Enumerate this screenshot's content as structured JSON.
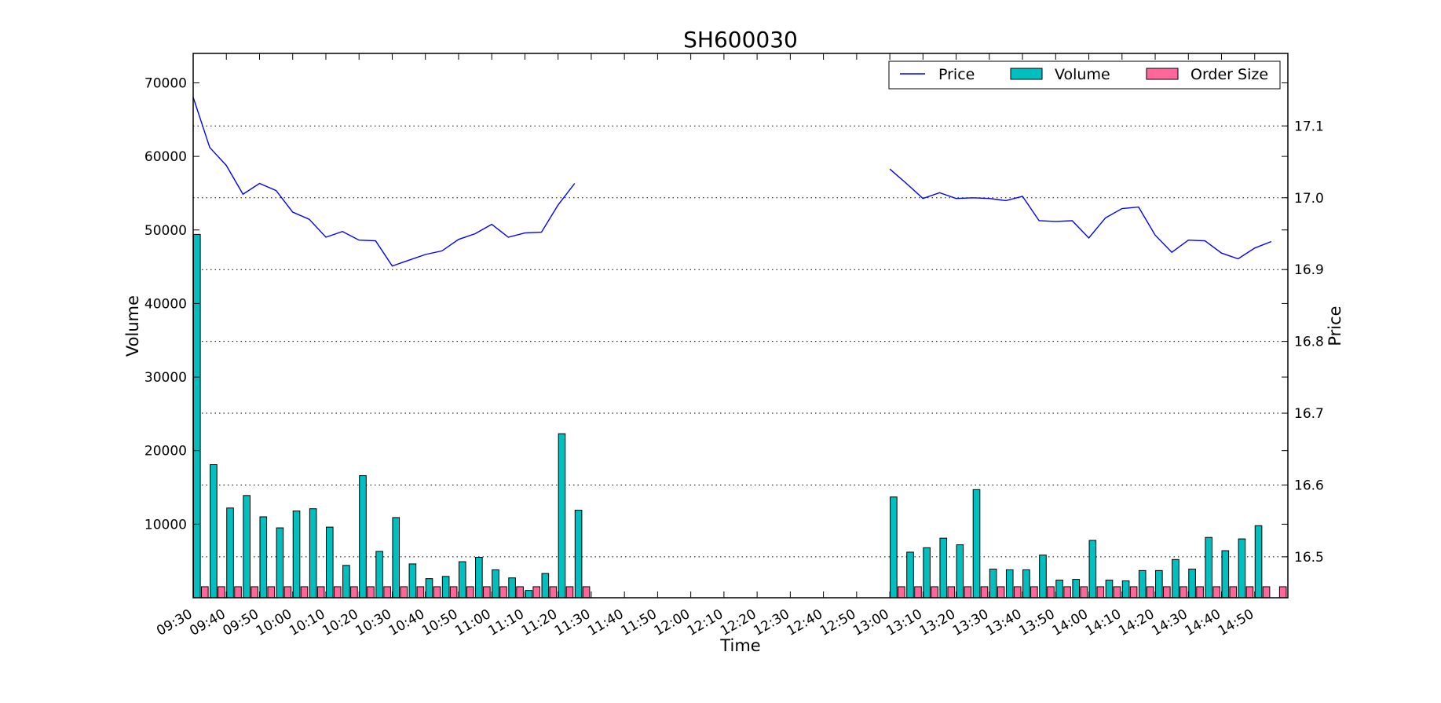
{
  "chart_data": {
    "type": "bar",
    "title": "SH600030",
    "xlabel": "Time",
    "ylabel": "Volume",
    "y2label": "Price",
    "ylim": [
      0,
      74000
    ],
    "y2lim": [
      16.443,
      17.201
    ],
    "grid": "dotted, right axis",
    "legend_position": "top-right",
    "legend": [
      "Price",
      "Volume",
      "Order Size"
    ],
    "x_tick_labels": [
      "09:30",
      "09:40",
      "09:50",
      "10:00",
      "10:10",
      "10:20",
      "10:30",
      "10:40",
      "10:50",
      "11:00",
      "11:10",
      "11:20",
      "11:30",
      "11:40",
      "11:50",
      "12:00",
      "12:10",
      "12:20",
      "12:30",
      "12:40",
      "12:50",
      "13:00",
      "13:10",
      "13:20",
      "13:30",
      "13:40",
      "13:50",
      "14:00",
      "14:10",
      "14:20",
      "14:30",
      "14:40",
      "14:50"
    ],
    "y_ticks": [
      10000,
      20000,
      30000,
      40000,
      50000,
      60000,
      70000
    ],
    "y_tick_labels": [
      "10000",
      "20000",
      "30000",
      "40000",
      "50000",
      "60000",
      "70000"
    ],
    "y2_ticks": [
      16.5,
      16.6,
      16.7,
      16.8,
      16.9,
      17.0,
      17.1
    ],
    "y2_tick_labels": [
      "16.5",
      "16.6",
      "16.7",
      "16.8",
      "16.9",
      "17.0",
      "17.1"
    ],
    "series": [
      {
        "name": "Volume",
        "color": "#00bfbf",
        "x": [
          "09:30",
          "09:35",
          "09:40",
          "09:45",
          "09:50",
          "09:55",
          "10:00",
          "10:05",
          "10:10",
          "10:15",
          "10:20",
          "10:25",
          "10:30",
          "10:35",
          "10:40",
          "10:45",
          "10:50",
          "10:55",
          "11:00",
          "11:05",
          "11:10",
          "11:15",
          "11:20",
          "11:25",
          "13:00",
          "13:05",
          "13:10",
          "13:15",
          "13:20",
          "13:25",
          "13:30",
          "13:35",
          "13:40",
          "13:45",
          "13:50",
          "13:55",
          "14:00",
          "14:05",
          "14:10",
          "14:15",
          "14:20",
          "14:25",
          "14:30",
          "14:35",
          "14:40",
          "14:45",
          "14:50",
          "14:55"
        ],
        "values": [
          49400,
          18100,
          12200,
          13900,
          11000,
          9500,
          11800,
          12100,
          9600,
          4400,
          16600,
          6300,
          10900,
          4600,
          2600,
          2900,
          4900,
          5500,
          3800,
          2700,
          1000,
          3300,
          22300,
          11900,
          13700,
          6200,
          6800,
          8100,
          7200,
          14700,
          3900,
          3800,
          3800,
          5800,
          2400,
          2500,
          7800,
          2400,
          2300,
          3700,
          3700,
          5200,
          3900,
          8200,
          6400,
          8000,
          9800,
          0
        ]
      },
      {
        "name": "Order Size",
        "color": "#ff6699",
        "x": [
          "09:30",
          "09:35",
          "09:40",
          "09:45",
          "09:50",
          "09:55",
          "10:00",
          "10:05",
          "10:10",
          "10:15",
          "10:20",
          "10:25",
          "10:30",
          "10:35",
          "10:40",
          "10:45",
          "10:50",
          "10:55",
          "11:00",
          "11:05",
          "11:10",
          "11:15",
          "11:20",
          "11:25",
          "13:00",
          "13:05",
          "13:10",
          "13:15",
          "13:20",
          "13:25",
          "13:30",
          "13:35",
          "13:40",
          "13:45",
          "13:50",
          "13:55",
          "14:00",
          "14:05",
          "14:10",
          "14:15",
          "14:20",
          "14:25",
          "14:30",
          "14:35",
          "14:40",
          "14:45",
          "14:50",
          "14:55"
        ],
        "values": [
          1500,
          1500,
          1500,
          1500,
          1500,
          1500,
          1500,
          1500,
          1500,
          1500,
          1500,
          1500,
          1500,
          1500,
          1500,
          1500,
          1500,
          1500,
          1500,
          1500,
          1500,
          1500,
          1500,
          1500,
          1500,
          1500,
          1500,
          1500,
          1500,
          1500,
          1500,
          1500,
          1500,
          1500,
          1500,
          1500,
          1500,
          1500,
          1500,
          1500,
          1500,
          1500,
          1500,
          1500,
          1500,
          1500,
          1500,
          1500
        ]
      },
      {
        "name": "Price",
        "color": "#0000ff",
        "axis": "right",
        "segments": [
          {
            "x": [
              "09:30",
              "09:35",
              "09:40",
              "09:45",
              "09:50",
              "09:55",
              "10:00",
              "10:05",
              "10:10",
              "10:15",
              "10:20",
              "10:25",
              "10:30",
              "10:35",
              "10:40",
              "10:45",
              "10:50",
              "10:55",
              "11:00",
              "11:05",
              "11:10",
              "11:15",
              "11:20",
              "11:25"
            ],
            "values": [
              17.14,
              17.07,
              17.045,
              17.005,
              17.02,
              17.01,
              16.98,
              16.97,
              16.945,
              16.953,
              16.941,
              16.94,
              16.905,
              16.913,
              16.921,
              16.926,
              16.942,
              16.95,
              16.963,
              16.945,
              16.951,
              16.952,
              16.99,
              17.02
            ]
          },
          {
            "x": [
              "13:00",
              "13:05",
              "13:10",
              "13:15",
              "13:20",
              "13:25",
              "13:30",
              "13:35",
              "13:40",
              "13:45",
              "13:50",
              "13:55",
              "14:00",
              "14:05",
              "14:10",
              "14:15",
              "14:20",
              "14:25",
              "14:30",
              "14:35",
              "14:40",
              "14:45",
              "14:50",
              "14:55"
            ],
            "values": [
              17.04,
              17.02,
              16.999,
              17.007,
              16.999,
              17.0,
              16.999,
              16.996,
              17.002,
              16.968,
              16.967,
              16.968,
              16.944,
              16.972,
              16.985,
              16.987,
              16.948,
              16.924,
              16.941,
              16.94,
              16.923,
              16.915,
              16.93,
              16.939
            ]
          }
        ]
      }
    ]
  }
}
